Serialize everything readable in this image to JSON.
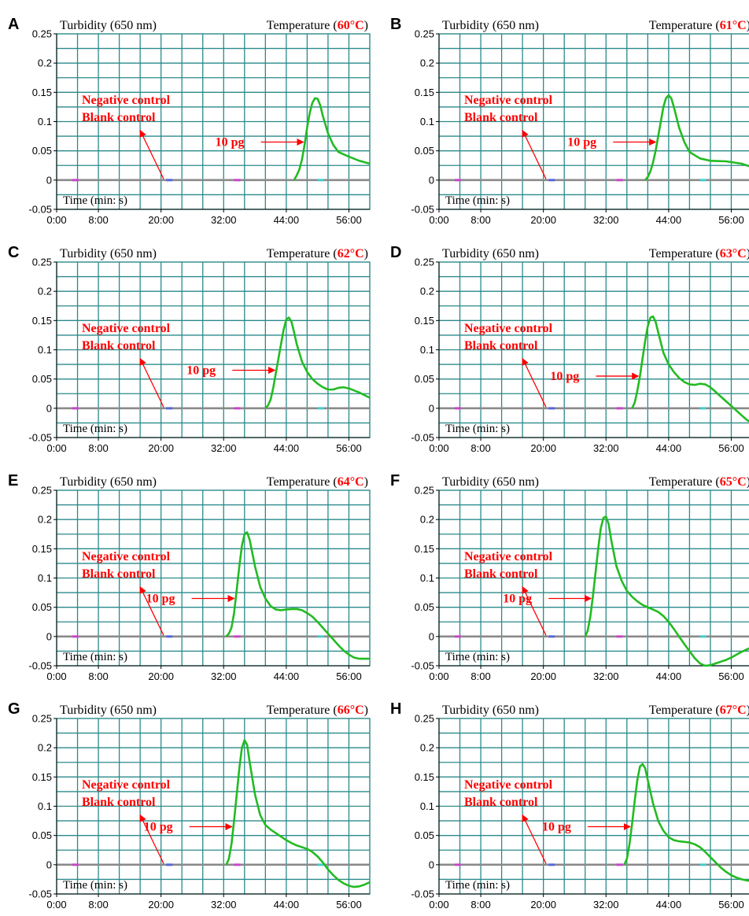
{
  "chart_data": [
    {
      "type": "line",
      "panel_label": "A",
      "title_left": "Turbidity (650 nm)",
      "title_right_prefix": "Temperature (",
      "title_right_temp": "60°C",
      "title_right_suffix": ")",
      "x_tick_labels": [
        "0:00",
        "8:00",
        "20:00",
        "32:00",
        "44:00",
        "56:00"
      ],
      "x_tick_minutes": [
        0,
        8,
        20,
        32,
        44,
        56
      ],
      "y_tick_labels": [
        "0.25",
        "0.2",
        "0.15",
        "0.1",
        "0.05",
        "0",
        "-0.05"
      ],
      "xlim": [
        0,
        60
      ],
      "ylim": [
        -0.05,
        0.25
      ],
      "grid": true,
      "xlabel": "Time (min: s)",
      "annotations": {
        "negative": "Negative control",
        "blank": "Blank control",
        "sample": "10 pg"
      },
      "sample_arrow_y": 0.065,
      "series": [
        {
          "name": "10 pg",
          "color": "#22bb22",
          "x": [
            45.5,
            46,
            46.5,
            47,
            47.5,
            48,
            48.5,
            49,
            49.5,
            50,
            50.5,
            51,
            52,
            53,
            54,
            56,
            58,
            60
          ],
          "y": [
            0,
            0.008,
            0.018,
            0.035,
            0.06,
            0.09,
            0.115,
            0.132,
            0.14,
            0.139,
            0.128,
            0.11,
            0.08,
            0.06,
            0.048,
            0.04,
            0.033,
            0.028
          ]
        }
      ]
    },
    {
      "type": "line",
      "panel_label": "B",
      "title_left": "Turbidity (650 nm)",
      "title_right_prefix": "Temperature (",
      "title_right_temp": "61°C",
      "title_right_suffix": ")",
      "x_tick_labels": [
        "0:00",
        "8:00",
        "20:00",
        "32:00",
        "44:00",
        "56:00"
      ],
      "x_tick_minutes": [
        0,
        8,
        20,
        32,
        44,
        56
      ],
      "y_tick_labels": [
        "0.25",
        "0.2",
        "0.15",
        "0.1",
        "0.05",
        "0",
        "-0.05"
      ],
      "xlim": [
        0,
        60
      ],
      "ylim": [
        -0.05,
        0.25
      ],
      "grid": true,
      "xlabel": "Time (min: s)",
      "annotations": {
        "negative": "Negative control",
        "blank": "Blank control",
        "sample": "10 pg"
      },
      "sample_arrow_y": 0.065,
      "series": [
        {
          "name": "10 pg",
          "color": "#22bb22",
          "x": [
            39.5,
            40,
            40.5,
            41,
            41.5,
            42,
            42.5,
            43,
            43.5,
            44,
            44.5,
            45,
            46,
            47,
            48,
            50,
            52,
            55,
            58,
            60
          ],
          "y": [
            0,
            0.005,
            0.015,
            0.03,
            0.05,
            0.075,
            0.1,
            0.125,
            0.14,
            0.145,
            0.14,
            0.125,
            0.09,
            0.065,
            0.048,
            0.037,
            0.033,
            0.032,
            0.028,
            0.022
          ]
        }
      ]
    },
    {
      "type": "line",
      "panel_label": "C",
      "title_left": "Turbidity (650 nm)",
      "title_right_prefix": "Temperature (",
      "title_right_temp": "62°C",
      "title_right_suffix": ")",
      "x_tick_labels": [
        "0:00",
        "8:00",
        "20:00",
        "32:00",
        "44:00",
        "56:00"
      ],
      "x_tick_minutes": [
        0,
        8,
        20,
        32,
        44,
        56
      ],
      "y_tick_labels": [
        "0.25",
        "0.2",
        "0.15",
        "0.1",
        "0.05",
        "0",
        "-0.05"
      ],
      "xlim": [
        0,
        60
      ],
      "ylim": [
        -0.05,
        0.25
      ],
      "grid": true,
      "xlabel": "Time (min: s)",
      "annotations": {
        "negative": "Negative control",
        "blank": "Blank control",
        "sample": "10 pg"
      },
      "sample_arrow_y": 0.065,
      "series": [
        {
          "name": "10 pg",
          "color": "#22bb22",
          "x": [
            40,
            40.5,
            41,
            41.5,
            42,
            42.5,
            43,
            43.5,
            44,
            44.5,
            45,
            45.5,
            46,
            47,
            48,
            49,
            50,
            51,
            52,
            53,
            54,
            55,
            56,
            58,
            60
          ],
          "y": [
            0,
            0.005,
            0.015,
            0.035,
            0.06,
            0.085,
            0.11,
            0.135,
            0.152,
            0.155,
            0.148,
            0.13,
            0.11,
            0.08,
            0.062,
            0.05,
            0.042,
            0.036,
            0.032,
            0.032,
            0.035,
            0.036,
            0.034,
            0.027,
            0.018
          ]
        }
      ]
    },
    {
      "type": "line",
      "panel_label": "D",
      "title_left": "Turbidity (650 nm)",
      "title_right_prefix": "Temperature (",
      "title_right_temp": "63°C",
      "title_right_suffix": ")",
      "x_tick_labels": [
        "0:00",
        "8:00",
        "20:00",
        "32:00",
        "44:00",
        "56:00"
      ],
      "x_tick_minutes": [
        0,
        8,
        20,
        32,
        44,
        56
      ],
      "y_tick_labels": [
        "0.25",
        "0.2",
        "0.15",
        "0.1",
        "0.05",
        "0",
        "-0.05"
      ],
      "xlim": [
        0,
        60
      ],
      "ylim": [
        -0.05,
        0.25
      ],
      "grid": true,
      "xlabel": "Time (min: s)",
      "annotations": {
        "negative": "Negative control",
        "blank": "Blank control",
        "sample": "10 pg"
      },
      "sample_arrow_y": 0.055,
      "series": [
        {
          "name": "10 pg",
          "color": "#22bb22",
          "x": [
            37,
            37.5,
            38,
            38.5,
            39,
            39.5,
            40,
            40.5,
            41,
            41.5,
            42,
            43,
            44,
            45,
            46,
            47,
            48,
            49,
            50,
            51,
            52,
            53,
            54,
            55,
            56,
            57,
            58,
            59,
            60
          ],
          "y": [
            0,
            0.01,
            0.03,
            0.055,
            0.085,
            0.115,
            0.14,
            0.155,
            0.157,
            0.148,
            0.13,
            0.095,
            0.075,
            0.062,
            0.052,
            0.045,
            0.041,
            0.04,
            0.042,
            0.041,
            0.036,
            0.028,
            0.02,
            0.012,
            0.004,
            -0.004,
            -0.012,
            -0.02,
            -0.025
          ]
        }
      ]
    },
    {
      "type": "line",
      "panel_label": "E",
      "title_left": "Turbidity (650 nm)",
      "title_right_prefix": "Temperature (",
      "title_right_temp": "64°C",
      "title_right_suffix": ")",
      "x_tick_labels": [
        "0:00",
        "8:00",
        "20:00",
        "32:00",
        "44:00",
        "56:00"
      ],
      "x_tick_minutes": [
        0,
        8,
        20,
        32,
        44,
        56
      ],
      "y_tick_labels": [
        "0.25",
        "0.2",
        "0.15",
        "0.1",
        "0.05",
        "0",
        "-0.05"
      ],
      "xlim": [
        0,
        60
      ],
      "ylim": [
        -0.05,
        0.25
      ],
      "grid": true,
      "xlabel": "Time (min: s)",
      "annotations": {
        "negative": "Negative control",
        "blank": "Blank control",
        "sample": "10 pg"
      },
      "sample_arrow_y": 0.065,
      "series": [
        {
          "name": "10 pg",
          "color": "#22bb22",
          "x": [
            32.5,
            33,
            33.5,
            34,
            34.5,
            35,
            35.5,
            36,
            36.5,
            37,
            38,
            39,
            40,
            41,
            42,
            43,
            44,
            45,
            46,
            47,
            48,
            49,
            50,
            51,
            52,
            53,
            54,
            55,
            56,
            57,
            58,
            59,
            60
          ],
          "y": [
            0,
            0.005,
            0.015,
            0.04,
            0.08,
            0.12,
            0.155,
            0.175,
            0.178,
            0.165,
            0.12,
            0.085,
            0.065,
            0.052,
            0.046,
            0.045,
            0.046,
            0.047,
            0.047,
            0.045,
            0.04,
            0.034,
            0.025,
            0.015,
            0.005,
            -0.005,
            -0.015,
            -0.024,
            -0.031,
            -0.036,
            -0.038,
            -0.038,
            -0.038
          ]
        }
      ]
    },
    {
      "type": "line",
      "panel_label": "F",
      "title_left": "Turbidity (650 nm)",
      "title_right_prefix": "Temperature (",
      "title_right_temp": "65°C",
      "title_right_suffix": ")",
      "x_tick_labels": [
        "0:00",
        "8:00",
        "20:00",
        "32:00",
        "44:00",
        "56:00"
      ],
      "x_tick_minutes": [
        0,
        8,
        20,
        32,
        44,
        56
      ],
      "y_tick_labels": [
        "0.25",
        "0.2",
        "0.15",
        "0.1",
        "0.05",
        "0",
        "-0.05"
      ],
      "xlim": [
        0,
        60
      ],
      "ylim": [
        -0.05,
        0.25
      ],
      "grid": true,
      "xlabel": "Time (min: s)",
      "annotations": {
        "negative": "Negative control",
        "blank": "Blank control",
        "sample": "10 pg"
      },
      "sample_arrow_y": 0.065,
      "series": [
        {
          "name": "10 pg",
          "color": "#22bb22",
          "x": [
            28,
            28.5,
            29,
            29.5,
            30,
            30.5,
            31,
            31.5,
            32,
            32.5,
            33,
            34,
            35,
            36,
            37,
            38,
            39,
            40,
            41,
            42,
            43,
            44,
            45,
            46,
            47,
            48,
            49,
            50,
            51,
            52,
            53,
            54,
            55,
            56,
            57,
            58,
            59,
            60
          ],
          "y": [
            0,
            0.01,
            0.035,
            0.07,
            0.11,
            0.15,
            0.185,
            0.203,
            0.205,
            0.192,
            0.165,
            0.12,
            0.095,
            0.078,
            0.068,
            0.06,
            0.054,
            0.05,
            0.046,
            0.042,
            0.035,
            0.025,
            0.013,
            0.0,
            -0.013,
            -0.025,
            -0.037,
            -0.046,
            -0.05,
            -0.049,
            -0.046,
            -0.043,
            -0.04,
            -0.036,
            -0.031,
            -0.026,
            -0.022,
            -0.018
          ]
        }
      ]
    },
    {
      "type": "line",
      "panel_label": "G",
      "title_left": "Turbidity (650 nm)",
      "title_right_prefix": "Temperature (",
      "title_right_temp": "66°C",
      "title_right_suffix": ")",
      "x_tick_labels": [
        "0:00",
        "8:00",
        "20:00",
        "32:00",
        "44:00",
        "56:00"
      ],
      "x_tick_minutes": [
        0,
        8,
        20,
        32,
        44,
        56
      ],
      "y_tick_labels": [
        "0.25",
        "0.2",
        "0.15",
        "0.1",
        "0.05",
        "0",
        "-0.05"
      ],
      "xlim": [
        0,
        60
      ],
      "ylim": [
        -0.05,
        0.25
      ],
      "grid": true,
      "xlabel": "Time (min: s)",
      "annotations": {
        "negative": "Negative control",
        "blank": "Blank control",
        "sample": "10 pg"
      },
      "sample_arrow_y": 0.065,
      "series": [
        {
          "name": "10 pg",
          "color": "#22bb22",
          "x": [
            32.5,
            33,
            33.5,
            34,
            34.5,
            35,
            35.5,
            36,
            36.5,
            37,
            38,
            39,
            40,
            41,
            42,
            43,
            44,
            45,
            46,
            47,
            48,
            49,
            50,
            51,
            52,
            53,
            54,
            55,
            56,
            57,
            58,
            59,
            60
          ],
          "y": [
            0,
            0.01,
            0.035,
            0.075,
            0.12,
            0.165,
            0.2,
            0.213,
            0.205,
            0.175,
            0.12,
            0.085,
            0.068,
            0.06,
            0.054,
            0.048,
            0.042,
            0.037,
            0.033,
            0.03,
            0.027,
            0.022,
            0.014,
            0.004,
            -0.008,
            -0.018,
            -0.026,
            -0.032,
            -0.036,
            -0.038,
            -0.037,
            -0.034,
            -0.03
          ]
        }
      ]
    },
    {
      "type": "line",
      "panel_label": "H",
      "title_left": "Turbidity (650 nm)",
      "title_right_prefix": "Temperature (",
      "title_right_temp": "67°C",
      "title_right_suffix": ")",
      "x_tick_labels": [
        "0:00",
        "8:00",
        "20:00",
        "32:00",
        "44:00",
        "56:00"
      ],
      "x_tick_minutes": [
        0,
        8,
        20,
        32,
        44,
        56
      ],
      "y_tick_labels": [
        "0.25",
        "0.2",
        "0.15",
        "0.1",
        "0.05",
        "0",
        "-0.05"
      ],
      "xlim": [
        0,
        60
      ],
      "ylim": [
        -0.05,
        0.25
      ],
      "grid": true,
      "xlabel": "Time (min: s)",
      "annotations": {
        "negative": "Negative control",
        "blank": "Blank control",
        "sample": "10 pg"
      },
      "sample_arrow_y": 0.065,
      "series": [
        {
          "name": "10 pg",
          "color": "#22bb22",
          "x": [
            35.5,
            36,
            36.5,
            37,
            37.5,
            38,
            38.5,
            39,
            39.5,
            40,
            41,
            42,
            43,
            44,
            45,
            46,
            47,
            48,
            49,
            50,
            51,
            52,
            53,
            54,
            55,
            56,
            57,
            58,
            59,
            60
          ],
          "y": [
            0,
            0.01,
            0.035,
            0.07,
            0.11,
            0.145,
            0.168,
            0.172,
            0.165,
            0.145,
            0.105,
            0.075,
            0.058,
            0.047,
            0.042,
            0.04,
            0.039,
            0.038,
            0.035,
            0.03,
            0.022,
            0.013,
            0.004,
            -0.005,
            -0.012,
            -0.018,
            -0.022,
            -0.025,
            -0.027,
            -0.028
          ]
        }
      ]
    }
  ]
}
